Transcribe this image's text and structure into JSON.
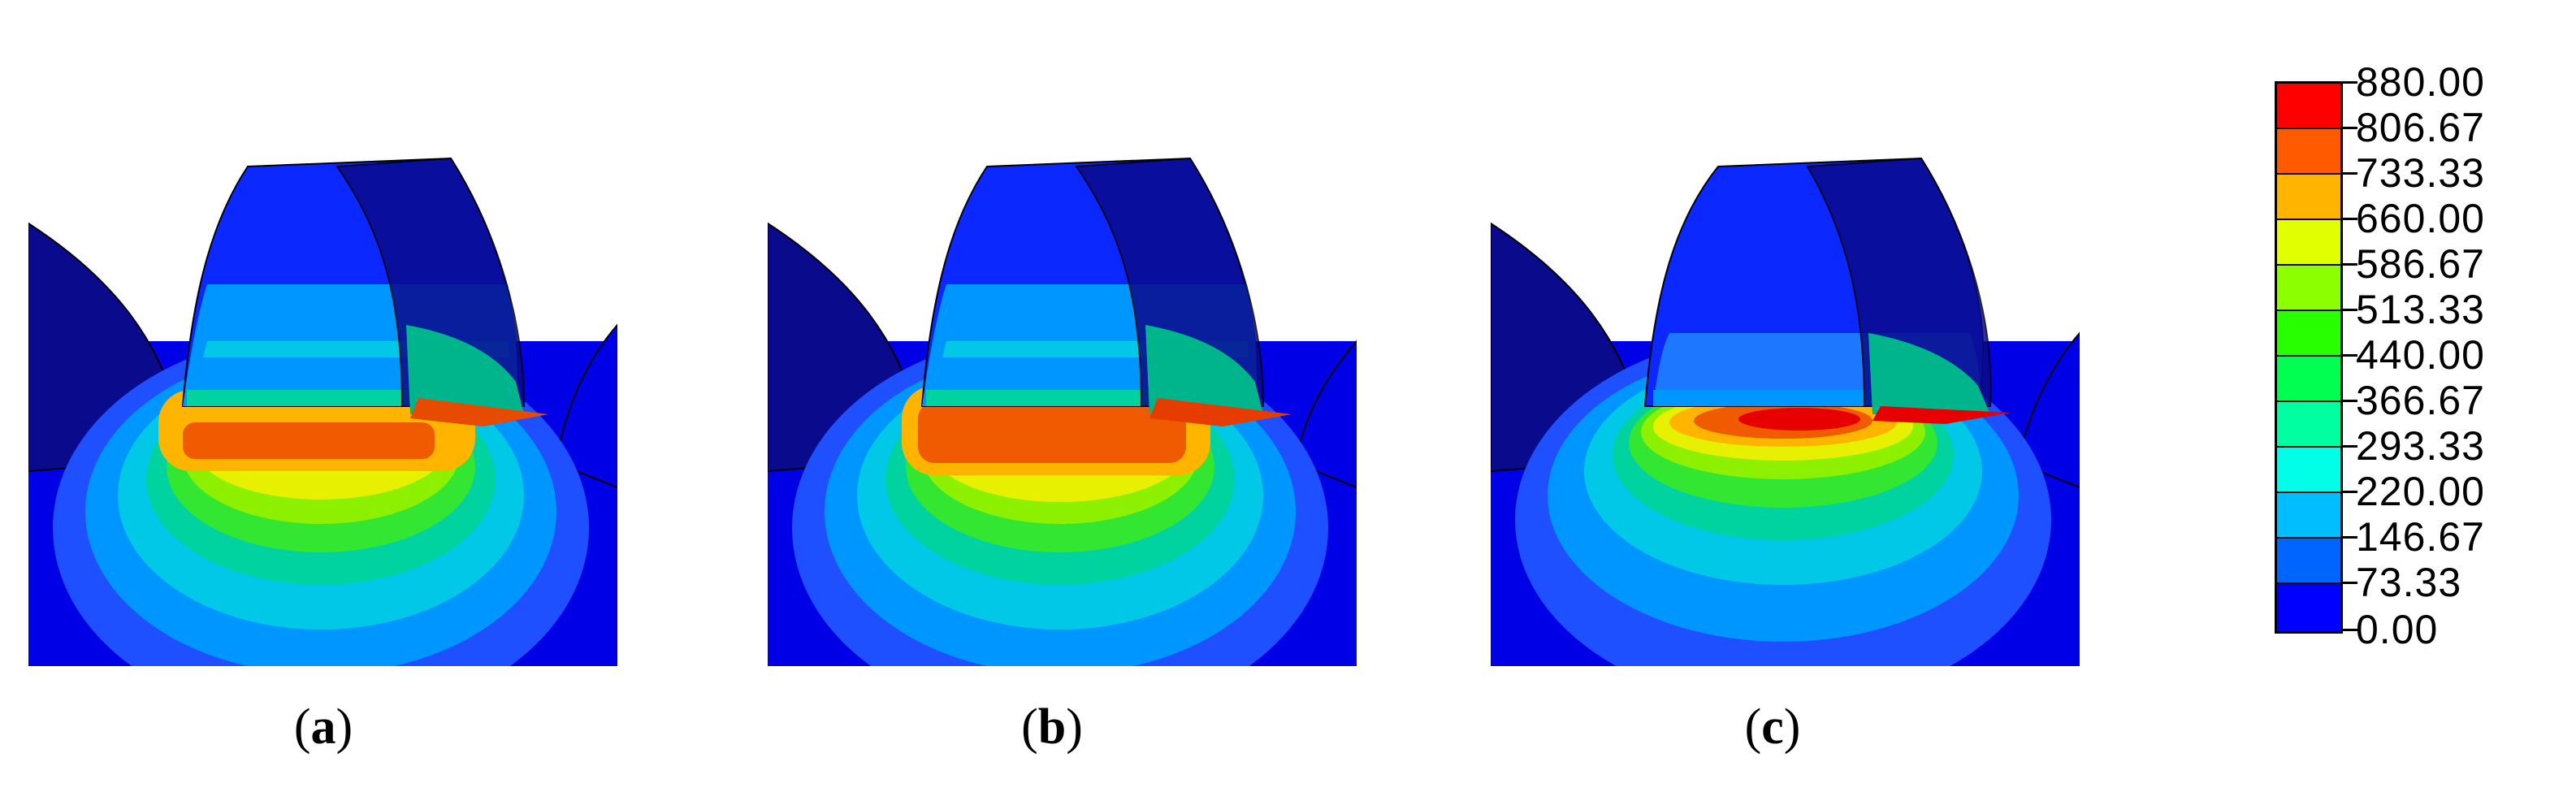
{
  "panels": [
    {
      "id": "a",
      "caption": "a",
      "peak": "orange"
    },
    {
      "id": "b",
      "caption": "b",
      "peak": "dark-orange"
    },
    {
      "id": "c",
      "caption": "c",
      "peak": "red"
    }
  ],
  "legend": {
    "labels": [
      "880.00",
      "806.67",
      "733.33",
      "660.00",
      "586.67",
      "513.33",
      "440.00",
      "366.67",
      "293.33",
      "220.00",
      "146.67",
      "73.33",
      "0.00"
    ],
    "colors": [
      "#ff0000",
      "#ff5a00",
      "#ffb400",
      "#e1ff00",
      "#8cff00",
      "#28ff00",
      "#00ff50",
      "#00ffa0",
      "#00ffe6",
      "#00beff",
      "#0064ff",
      "#0000ff"
    ]
  },
  "palette": {
    "deep": "#0000e6",
    "navy": "#0a0a8c",
    "blue": "#1e50ff",
    "lightblue": "#0096ff",
    "cyan": "#00c8e6",
    "teal": "#00d2a0",
    "green": "#32e632",
    "lime": "#8cf000",
    "yellow": "#e6f000",
    "orange": "#ffb400",
    "darkorange": "#f05a00",
    "red": "#e60000"
  }
}
